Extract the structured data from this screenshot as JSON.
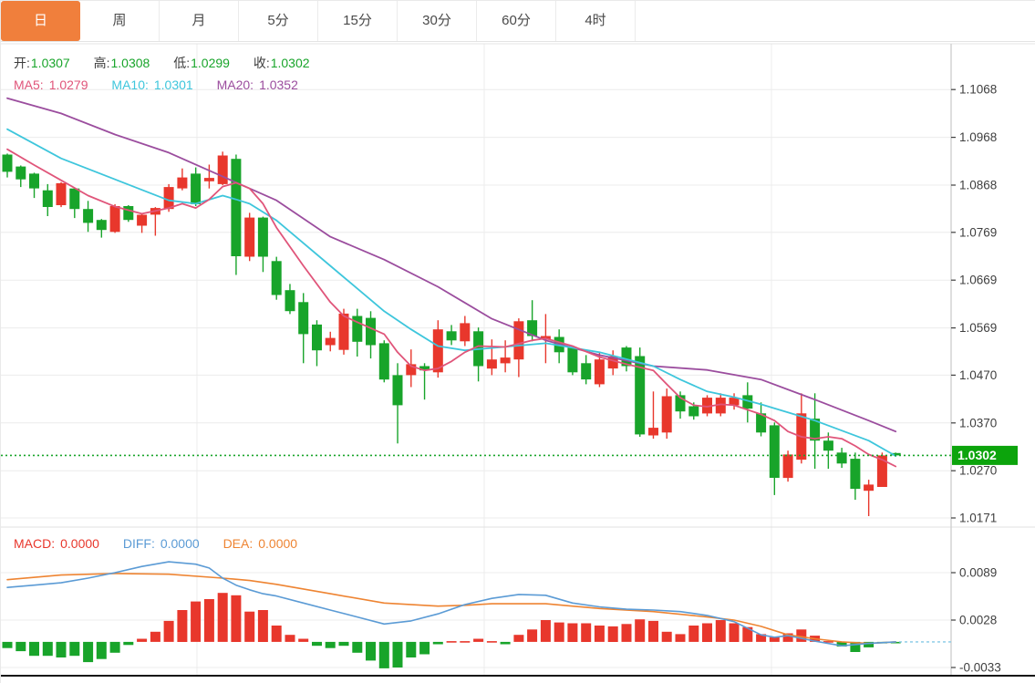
{
  "tabs": [
    {
      "label": "日",
      "active": true
    },
    {
      "label": "周",
      "active": false
    },
    {
      "label": "月",
      "active": false
    },
    {
      "label": "5分",
      "active": false
    },
    {
      "label": "15分",
      "active": false
    },
    {
      "label": "30分",
      "active": false
    },
    {
      "label": "60分",
      "active": false
    },
    {
      "label": "4时",
      "active": false
    }
  ],
  "legend": {
    "open_label": "开:",
    "open_value": "1.0307",
    "high_label": "高:",
    "high_value": "1.0308",
    "low_label": "低:",
    "low_value": "1.0299",
    "close_label": "收:",
    "close_value": "1.0302"
  },
  "ma_legend": {
    "ma5_label": "MA5:",
    "ma5_value": "1.0279",
    "ma10_label": "MA10:",
    "ma10_value": "1.0301",
    "ma20_label": "MA20:",
    "ma20_value": "1.0352"
  },
  "macd_legend": {
    "macd_label": "MACD:",
    "macd_value": "0.0000",
    "diff_label": "DIFF:",
    "diff_value": "0.0000",
    "dea_label": "DEA:",
    "dea_value": "0.0000"
  },
  "colors": {
    "up": "#e8372c",
    "down": "#18a42a",
    "ma5": "#e0557a",
    "ma10": "#3ec6dc",
    "ma20": "#9b4d9e",
    "diff": "#5b9bd5",
    "dea": "#ee8432",
    "grid": "#ececec",
    "axis_text": "#3f3f3f",
    "badge_bg": "#0ca40c",
    "badge_text": "#ffffff",
    "dashed_zero": "#85c9e6",
    "border": "#cfcfcf",
    "bottom_line": "#141414",
    "tab": "#f07f3c"
  },
  "chart_data": [
    {
      "type": "candlestick",
      "title": "日K (daily candles with MA5/MA10/MA20)",
      "ylim": [
        1.0152,
        1.1162
      ],
      "y_ticks": [
        1.1068,
        1.0968,
        1.0868,
        1.0769,
        1.0669,
        1.0569,
        1.047,
        1.037,
        1.027,
        1.0171
      ],
      "current_price": 1.0302,
      "legend_position": "top-left",
      "grid": true,
      "candles": [
        [
          1.0932,
          1.0934,
          1.0884,
          1.0896
        ],
        [
          1.0907,
          1.0909,
          1.0864,
          1.088
        ],
        [
          1.0892,
          1.0894,
          1.0841,
          1.0861
        ],
        [
          1.0857,
          1.087,
          1.0803,
          1.0822
        ],
        [
          1.0826,
          1.0874,
          1.0822,
          1.0872
        ],
        [
          1.0861,
          1.0863,
          1.0799,
          1.0818
        ],
        [
          1.0818,
          1.0835,
          1.077,
          1.0789
        ],
        [
          1.0795,
          1.0797,
          1.0758,
          1.0774
        ],
        [
          1.077,
          1.0828,
          1.0768,
          1.0824
        ],
        [
          1.0824,
          1.0826,
          1.0791,
          1.0795
        ],
        [
          1.0783,
          1.0808,
          1.0768,
          1.0806
        ],
        [
          1.0806,
          1.0822,
          1.0762,
          1.082
        ],
        [
          1.0818,
          1.087,
          1.0812,
          1.0864
        ],
        [
          1.0861,
          1.0903,
          1.0857,
          1.0884
        ],
        [
          1.0892,
          1.0905,
          1.0824,
          1.0828
        ],
        [
          1.0876,
          1.0911,
          1.0861,
          1.0883
        ],
        [
          1.087,
          1.0938,
          1.0868,
          1.093
        ],
        [
          1.0923,
          1.0932,
          1.068,
          1.0719
        ],
        [
          1.0718,
          1.081,
          1.0709,
          1.08
        ],
        [
          1.08,
          1.0802,
          1.0686,
          1.0718
        ],
        [
          1.0709,
          1.0718,
          1.0628,
          1.0638
        ],
        [
          1.0648,
          1.0661,
          1.0598,
          1.0604
        ],
        [
          1.0623,
          1.0642,
          1.0495,
          1.0556
        ],
        [
          1.0576,
          1.0585,
          1.0489,
          1.0522
        ],
        [
          1.0533,
          1.0561,
          1.052,
          1.0548
        ],
        [
          1.0523,
          1.0609,
          1.0513,
          1.0599
        ],
        [
          1.0594,
          1.0609,
          1.0509,
          1.054
        ],
        [
          1.059,
          1.0604,
          1.0505,
          1.0533
        ],
        [
          1.0537,
          1.0543,
          1.0455,
          1.0461
        ],
        [
          1.047,
          1.0495,
          1.0327,
          1.0407
        ],
        [
          1.047,
          1.0524,
          1.0445,
          1.0493
        ],
        [
          1.0489,
          1.0495,
          1.0419,
          1.048
        ],
        [
          1.0476,
          1.0585,
          1.0465,
          1.0566
        ],
        [
          1.0562,
          1.0575,
          1.0533,
          1.0543
        ],
        [
          1.0541,
          1.0594,
          1.0531,
          1.0579
        ],
        [
          1.0562,
          1.057,
          1.0457,
          1.0489
        ],
        [
          1.0484,
          1.0545,
          1.047,
          1.0503
        ],
        [
          1.0495,
          1.0543,
          1.0476,
          1.0507
        ],
        [
          1.0503,
          1.0589,
          1.0466,
          1.0583
        ],
        [
          1.0585,
          1.0627,
          1.0541,
          1.0552
        ],
        [
          1.0545,
          1.0598,
          1.0495,
          1.0552
        ],
        [
          1.055,
          1.0566,
          1.0495,
          1.0518
        ],
        [
          1.0528,
          1.0531,
          1.047,
          1.0476
        ],
        [
          1.0495,
          1.0512,
          1.0451,
          1.0461
        ],
        [
          1.0451,
          1.0518,
          1.0445,
          1.0503
        ],
        [
          1.0484,
          1.0522,
          1.047,
          1.051
        ],
        [
          1.0528,
          1.0531,
          1.0478,
          1.0489
        ],
        [
          1.051,
          1.0528,
          1.0341,
          1.0346
        ],
        [
          1.0344,
          1.0436,
          1.0337,
          1.036
        ],
        [
          1.035,
          1.0442,
          1.0337,
          1.0426
        ],
        [
          1.0428,
          1.0436,
          1.0379,
          1.0394
        ],
        [
          1.0405,
          1.0413,
          1.0377,
          1.0384
        ],
        [
          1.039,
          1.0428,
          1.0384,
          1.0423
        ],
        [
          1.039,
          1.0432,
          1.0384,
          1.0423
        ],
        [
          1.0407,
          1.0432,
          1.0398,
          1.0423
        ],
        [
          1.0428,
          1.0455,
          1.0371,
          1.04
        ],
        [
          1.039,
          1.0413,
          1.0342,
          1.035
        ],
        [
          1.0365,
          1.0371,
          1.0219,
          1.0255
        ],
        [
          1.0255,
          1.0312,
          1.0247,
          1.0304
        ],
        [
          1.0293,
          1.0432,
          1.0285,
          1.039
        ],
        [
          1.0379,
          1.0432,
          1.0274,
          1.0333
        ],
        [
          1.0333,
          1.035,
          1.0274,
          1.0312
        ],
        [
          1.0308,
          1.0318,
          1.0276,
          1.0285
        ],
        [
          1.0295,
          1.0308,
          1.0209,
          1.0232
        ],
        [
          1.0228,
          1.0251,
          1.0175,
          1.0241
        ],
        [
          1.0236,
          1.0308,
          1.0236,
          1.0302
        ],
        [
          1.0307,
          1.0308,
          1.0299,
          1.0302
        ]
      ],
      "ma5_points": [
        [
          0,
          1.0943
        ],
        [
          2,
          1.091
        ],
        [
          4,
          1.0878
        ],
        [
          6,
          1.0846
        ],
        [
          8,
          1.0823
        ],
        [
          10,
          1.0808
        ],
        [
          12,
          1.082
        ],
        [
          13,
          1.0829
        ],
        [
          14,
          1.082
        ],
        [
          15,
          1.0838
        ],
        [
          16,
          1.0865
        ],
        [
          17,
          1.0873
        ],
        [
          18,
          1.0861
        ],
        [
          19,
          1.0829
        ],
        [
          20,
          1.0779
        ],
        [
          22,
          1.0699
        ],
        [
          24,
          1.0623
        ],
        [
          25,
          1.0594
        ],
        [
          26,
          1.0581
        ],
        [
          28,
          1.0556
        ],
        [
          29,
          1.0518
        ],
        [
          30,
          1.0489
        ],
        [
          31,
          1.048
        ],
        [
          32,
          1.0484
        ],
        [
          33,
          1.0499
        ],
        [
          34,
          1.0518
        ],
        [
          35,
          1.0531
        ],
        [
          37,
          1.0529
        ],
        [
          39,
          1.0543
        ],
        [
          40,
          1.0547
        ],
        [
          42,
          1.0531
        ],
        [
          44,
          1.0508
        ],
        [
          46,
          1.0493
        ],
        [
          48,
          1.048
        ],
        [
          49,
          1.0451
        ],
        [
          50,
          1.0423
        ],
        [
          51,
          1.0407
        ],
        [
          52,
          1.0404
        ],
        [
          53,
          1.0409
        ],
        [
          54,
          1.0407
        ],
        [
          56,
          1.0388
        ],
        [
          57,
          1.0375
        ],
        [
          58,
          1.0352
        ],
        [
          59,
          1.0341
        ],
        [
          60,
          1.0337
        ],
        [
          61,
          1.0341
        ],
        [
          62,
          1.0337
        ],
        [
          63,
          1.0322
        ],
        [
          64,
          1.0304
        ],
        [
          65,
          1.0293
        ],
        [
          66,
          1.0279
        ]
      ],
      "ma10_points": [
        [
          0,
          1.0985
        ],
        [
          4,
          1.0924
        ],
        [
          8,
          1.088
        ],
        [
          12,
          1.0836
        ],
        [
          14,
          1.0829
        ],
        [
          16,
          1.0846
        ],
        [
          17,
          1.0838
        ],
        [
          18,
          1.0829
        ],
        [
          20,
          1.0794
        ],
        [
          24,
          1.0699
        ],
        [
          28,
          1.0604
        ],
        [
          30,
          1.0566
        ],
        [
          32,
          1.0531
        ],
        [
          34,
          1.0522
        ],
        [
          36,
          1.0527
        ],
        [
          40,
          1.0537
        ],
        [
          44,
          1.0518
        ],
        [
          48,
          1.0489
        ],
        [
          50,
          1.0461
        ],
        [
          52,
          1.0436
        ],
        [
          54,
          1.0424
        ],
        [
          56,
          1.0409
        ],
        [
          60,
          1.0375
        ],
        [
          64,
          1.0333
        ],
        [
          66,
          1.0301
        ]
      ],
      "ma20_points": [
        [
          0,
          1.105
        ],
        [
          4,
          1.1018
        ],
        [
          8,
          1.0974
        ],
        [
          12,
          1.0936
        ],
        [
          16,
          1.0886
        ],
        [
          20,
          1.0836
        ],
        [
          24,
          1.076
        ],
        [
          28,
          1.0712
        ],
        [
          32,
          1.0655
        ],
        [
          36,
          1.0588
        ],
        [
          40,
          1.0543
        ],
        [
          44,
          1.0512
        ],
        [
          48,
          1.0489
        ],
        [
          52,
          1.0481
        ],
        [
          56,
          1.0461
        ],
        [
          60,
          1.0419
        ],
        [
          64,
          1.0375
        ],
        [
          66,
          1.0352
        ]
      ]
    },
    {
      "type": "bar",
      "title": "MACD(DIFF/DEA) sub-panel",
      "ylim": [
        -0.00435,
        0.0143
      ],
      "y_ticks": [
        0.0089,
        0.0028,
        -0.0033
      ],
      "grid": true,
      "histogram": [
        -0.0008,
        -0.0012,
        -0.0018,
        -0.0018,
        -0.002,
        -0.0018,
        -0.0026,
        -0.0022,
        -0.0014,
        -0.0004,
        0.0004,
        0.0013,
        0.0027,
        0.0041,
        0.0052,
        0.0055,
        0.0063,
        0.006,
        0.0039,
        0.0041,
        0.0021,
        0.0009,
        0.0004,
        -0.0005,
        -0.0008,
        -0.0005,
        -0.0014,
        -0.0024,
        -0.0034,
        -0.0033,
        -0.002,
        -0.0016,
        -0.0003,
        0.0001,
        0.0001,
        0.0004,
        0.0001,
        -0.0003,
        0.0009,
        0.0016,
        0.0028,
        0.0025,
        0.0024,
        0.0024,
        0.0021,
        0.002,
        0.0023,
        0.0029,
        0.0027,
        0.0013,
        0.001,
        0.0021,
        0.0024,
        0.0028,
        0.0024,
        0.0019,
        0.001,
        0.0006,
        0.0011,
        0.0016,
        0.0008,
        0.0001,
        -0.0006,
        -0.0013,
        -0.0007,
        -0.0002,
        -0.0001
      ],
      "diff_points": [
        [
          0,
          0.007
        ],
        [
          2,
          0.0073
        ],
        [
          4,
          0.0076
        ],
        [
          6,
          0.0082
        ],
        [
          8,
          0.0089
        ],
        [
          10,
          0.0097
        ],
        [
          12,
          0.0103
        ],
        [
          14,
          0.01
        ],
        [
          15,
          0.0095
        ],
        [
          16,
          0.0082
        ],
        [
          17,
          0.0073
        ],
        [
          18,
          0.0067
        ],
        [
          19,
          0.0062
        ],
        [
          20,
          0.0059
        ],
        [
          22,
          0.005
        ],
        [
          24,
          0.0041
        ],
        [
          26,
          0.0032
        ],
        [
          28,
          0.0023
        ],
        [
          30,
          0.0027
        ],
        [
          32,
          0.0036
        ],
        [
          34,
          0.0048
        ],
        [
          36,
          0.0056
        ],
        [
          38,
          0.0061
        ],
        [
          40,
          0.006
        ],
        [
          42,
          0.005
        ],
        [
          44,
          0.0045
        ],
        [
          46,
          0.0042
        ],
        [
          48,
          0.0041
        ],
        [
          50,
          0.0039
        ],
        [
          52,
          0.0034
        ],
        [
          54,
          0.0026
        ],
        [
          56,
          0.0009
        ],
        [
          57,
          0.0006
        ],
        [
          58,
          0.0008
        ],
        [
          60,
          0.0001
        ],
        [
          62,
          -0.0005
        ],
        [
          64,
          -0.0002
        ],
        [
          66,
          0.0
        ]
      ],
      "dea_points": [
        [
          0,
          0.008
        ],
        [
          4,
          0.0086
        ],
        [
          8,
          0.0088
        ],
        [
          12,
          0.0087
        ],
        [
          16,
          0.0082
        ],
        [
          18,
          0.0079
        ],
        [
          20,
          0.0074
        ],
        [
          24,
          0.0062
        ],
        [
          28,
          0.005
        ],
        [
          32,
          0.0046
        ],
        [
          34,
          0.0047
        ],
        [
          36,
          0.0049
        ],
        [
          40,
          0.0049
        ],
        [
          44,
          0.0043
        ],
        [
          48,
          0.0039
        ],
        [
          52,
          0.0032
        ],
        [
          54,
          0.0028
        ],
        [
          56,
          0.002
        ],
        [
          58,
          0.0009
        ],
        [
          60,
          0.0004
        ],
        [
          62,
          0.0
        ],
        [
          64,
          -0.0002
        ],
        [
          66,
          0.0
        ]
      ]
    }
  ]
}
